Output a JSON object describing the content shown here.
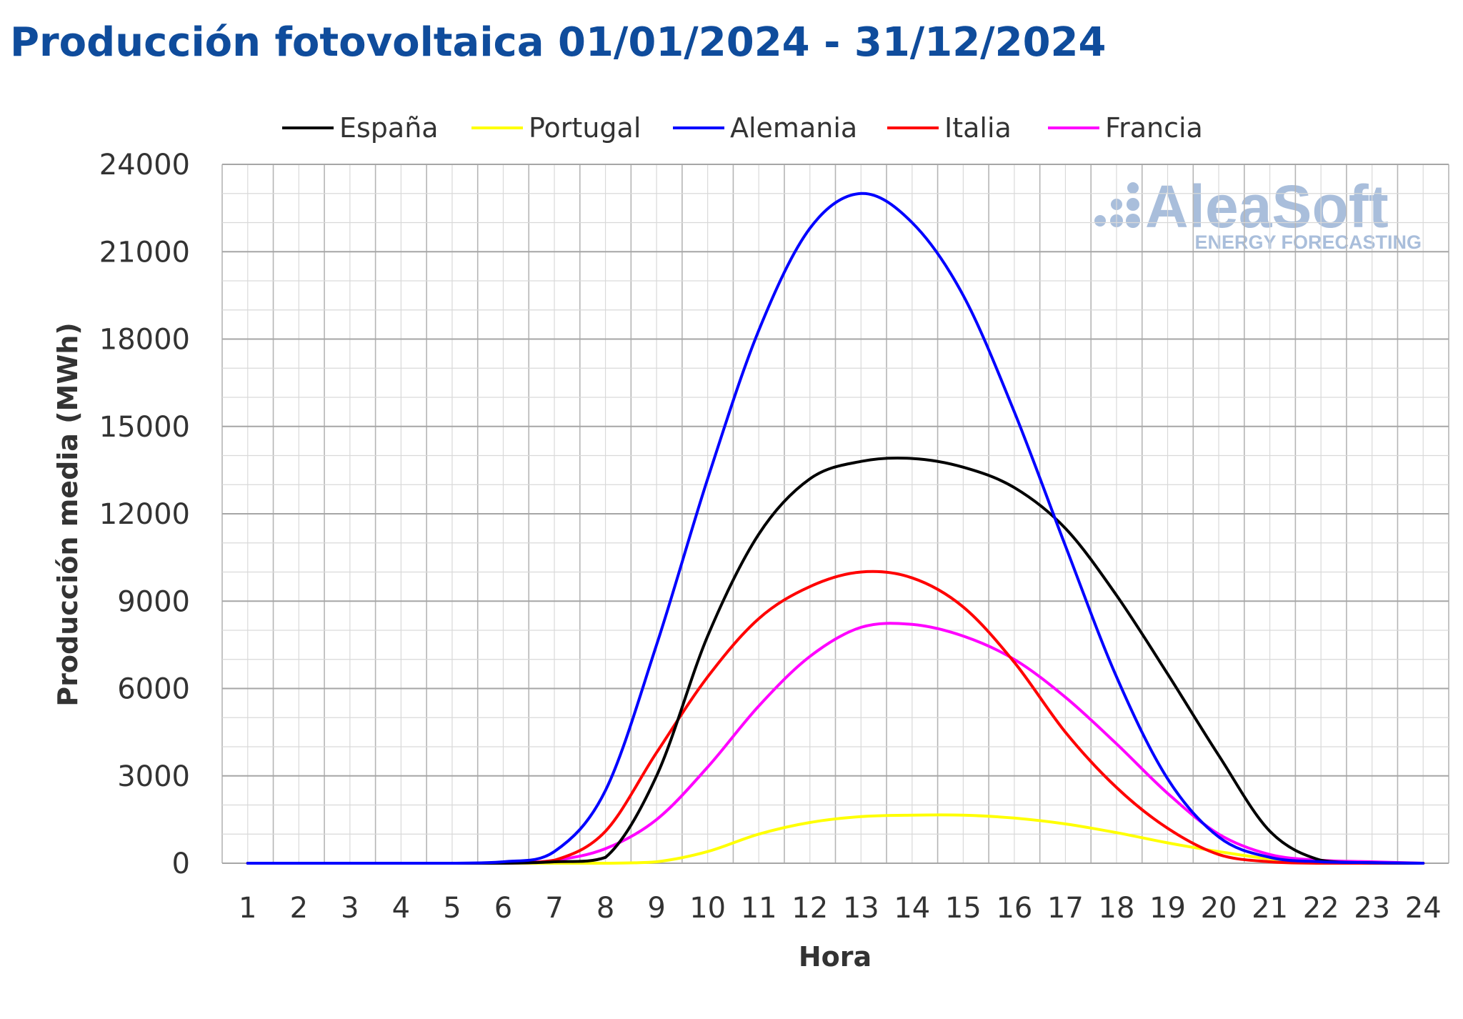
{
  "chart_data": {
    "type": "line",
    "title": "Producción fotovoltaica 01/01/2024 - 31/12/2024",
    "xlabel": "Hora",
    "ylabel": "Producción media (MWh)",
    "x": [
      1,
      2,
      3,
      4,
      5,
      6,
      7,
      8,
      9,
      10,
      11,
      12,
      13,
      14,
      15,
      16,
      17,
      18,
      19,
      20,
      21,
      22,
      23,
      24
    ],
    "ylim": [
      0,
      24000
    ],
    "yticks": [
      0,
      3000,
      6000,
      9000,
      12000,
      15000,
      18000,
      21000,
      24000
    ],
    "ytick_labels": [
      "0",
      "3000",
      "6000",
      "9000",
      "12000",
      "15000",
      "18000",
      "21000",
      "24000"
    ],
    "xtick_labels": [
      "1",
      "2",
      "3",
      "4",
      "5",
      "6",
      "7",
      "8",
      "9",
      "10",
      "11",
      "12",
      "13",
      "14",
      "15",
      "16",
      "17",
      "18",
      "19",
      "20",
      "21",
      "22",
      "23",
      "24"
    ],
    "grid": true,
    "legend_position": "top",
    "series": [
      {
        "name": "España",
        "color": "#000000",
        "values": [
          0,
          0,
          0,
          0,
          0,
          0,
          50,
          200,
          3000,
          7800,
          11300,
          13200,
          13800,
          13900,
          13600,
          12900,
          11500,
          9200,
          6500,
          3700,
          1100,
          100,
          20,
          0
        ]
      },
      {
        "name": "Portugal",
        "color": "#ffff00",
        "values": [
          0,
          0,
          0,
          0,
          0,
          0,
          0,
          0,
          50,
          400,
          1000,
          1400,
          1600,
          1650,
          1650,
          1550,
          1350,
          1050,
          700,
          400,
          150,
          30,
          10,
          0
        ]
      },
      {
        "name": "Alemania",
        "color": "#0000ff",
        "values": [
          0,
          0,
          0,
          0,
          0,
          50,
          400,
          2500,
          7500,
          13200,
          18300,
          21800,
          23000,
          22000,
          19500,
          15500,
          10900,
          6400,
          2900,
          900,
          200,
          50,
          20,
          0
        ]
      },
      {
        "name": "Italia",
        "color": "#ff0000",
        "values": [
          0,
          0,
          0,
          0,
          0,
          0,
          100,
          1100,
          3800,
          6400,
          8400,
          9500,
          10000,
          9800,
          8800,
          6900,
          4500,
          2600,
          1200,
          300,
          50,
          0,
          0,
          0
        ]
      },
      {
        "name": "Francia",
        "color": "#ff00ff",
        "values": [
          0,
          0,
          0,
          0,
          0,
          0,
          100,
          500,
          1500,
          3300,
          5400,
          7100,
          8100,
          8200,
          7800,
          7000,
          5700,
          4100,
          2400,
          1000,
          300,
          100,
          50,
          0
        ]
      }
    ]
  },
  "watermark": {
    "brand": "AleaSoft",
    "tagline": "ENERGY FORECASTING"
  }
}
